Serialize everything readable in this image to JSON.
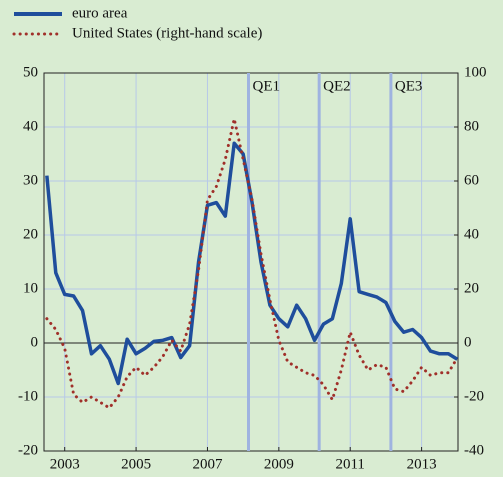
{
  "chart_data": {
    "type": "line",
    "x": [
      2002.5,
      2002.75,
      2003,
      2003.25,
      2003.5,
      2003.75,
      2004,
      2004.25,
      2004.5,
      2004.75,
      2005,
      2005.25,
      2005.5,
      2005.75,
      2006,
      2006.25,
      2006.5,
      2006.75,
      2007,
      2007.25,
      2007.5,
      2007.75,
      2008,
      2008.25,
      2008.5,
      2008.75,
      2009,
      2009.25,
      2009.5,
      2009.75,
      2010,
      2010.25,
      2010.5,
      2010.75,
      2011,
      2011.25,
      2011.5,
      2011.75,
      2012,
      2012.25,
      2012.5,
      2012.75,
      2013,
      2013.25,
      2013.5,
      2013.75,
      2014
    ],
    "series": [
      {
        "name": "euro area",
        "color": "#1f4e9c",
        "style": "solid",
        "values": [
          31,
          13,
          9,
          8.7,
          6,
          -2,
          -0.5,
          -3,
          -7.5,
          0.7,
          -2,
          -1,
          0.3,
          0.5,
          1,
          -2.7,
          -0.5,
          15,
          25.5,
          26,
          23.5,
          37,
          35,
          26,
          15,
          7,
          4.5,
          3,
          7,
          4.5,
          0.5,
          3.5,
          4.5,
          11,
          23,
          9.5,
          9,
          8.5,
          7.5,
          4,
          2,
          2.5,
          1,
          -1.5,
          -2,
          -2,
          -3
        ]
      },
      {
        "name": "United States (right-hand scale)",
        "color": "#a0302a",
        "style": "dotted",
        "axis": "y2",
        "values": [
          9,
          5,
          -2,
          -19,
          -22,
          -20,
          -22,
          -24,
          -20,
          -12.5,
          -9,
          -12,
          -9,
          -5,
          1,
          -3,
          7,
          27,
          53,
          58,
          68,
          83,
          68,
          53,
          33,
          16,
          1,
          -7,
          -9,
          -11,
          -12,
          -15.5,
          -21,
          -10,
          4,
          -4.5,
          -10,
          -8,
          -9,
          -17,
          -18,
          -14,
          -9,
          -12,
          -11,
          -11,
          -5.5
        ]
      }
    ],
    "xlim": [
      2002.42,
      2014.02
    ],
    "xticks": [
      2003,
      2005,
      2007,
      2009,
      2011,
      2013
    ],
    "ylim": [
      -20,
      50
    ],
    "yticks": [
      -20,
      -10,
      0,
      10,
      20,
      30,
      40,
      50
    ],
    "y2lim": [
      -40,
      100
    ],
    "y2ticks": [
      -40,
      -20,
      0,
      20,
      40,
      60,
      80,
      100
    ],
    "grid": true,
    "annotations": [
      {
        "x": 2008.15,
        "label": "QE1"
      },
      {
        "x": 2010.13,
        "label": "QE2"
      },
      {
        "x": 2012.14,
        "label": "QE3"
      }
    ]
  }
}
